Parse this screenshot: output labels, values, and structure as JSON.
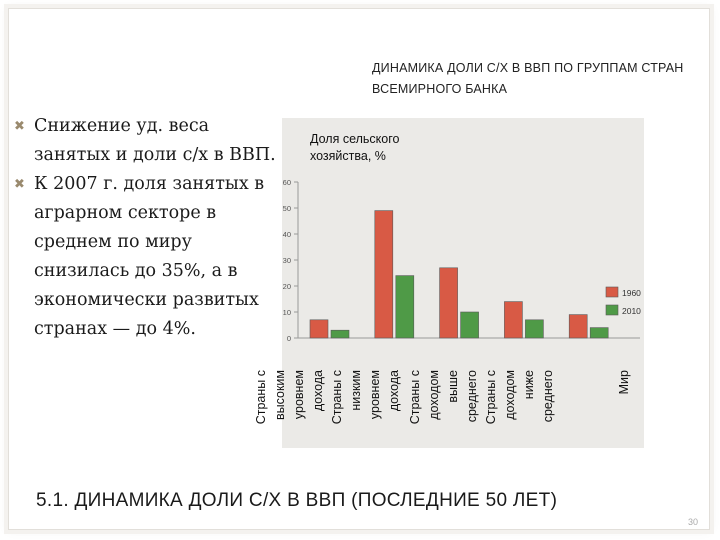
{
  "slide": {
    "bullets": [
      "Снижение уд. веса занятых и доли с/х в ВВП.",
      "К 2007 г. доля занятых в аграрном секторе в среднем по миру снизилась до 35%, а в экономически развитых странах — до 4%."
    ],
    "bullet_icon": "x-mark-icon",
    "footer_title": "5.1. ДИНАМИКА ДОЛИ С/Х В ВВП (ПОСЛЕДНИЕ 50 ЛЕТ)",
    "page_number": "30"
  },
  "chart_data": {
    "type": "bar",
    "title": "ДИНАМИКА ДОЛИ С/Х В ВВП ПО ГРУППАМ СТРАН ВСЕМИРНОГО БАНКА",
    "ylabel": "Доля сельского хозяйства, %",
    "xlabel": "",
    "categories": [
      "Страны с высоким уровнем дохода",
      "Страны с низким уровнем дохода",
      "Страны с доходом выше среднего",
      "Страны с доходом ниже среднего",
      "Мир"
    ],
    "series": [
      {
        "name": "1960",
        "color": "#d85a45",
        "values": [
          7,
          49,
          27,
          14,
          9
        ]
      },
      {
        "name": "2010",
        "color": "#4f9a47",
        "values": [
          3,
          24,
          10,
          7,
          4
        ]
      }
    ],
    "ylim": [
      0,
      60
    ],
    "yticks": [
      "0",
      "10",
      "20",
      "30",
      "40",
      "50",
      "60"
    ],
    "grid": false,
    "legend_position": "right"
  }
}
